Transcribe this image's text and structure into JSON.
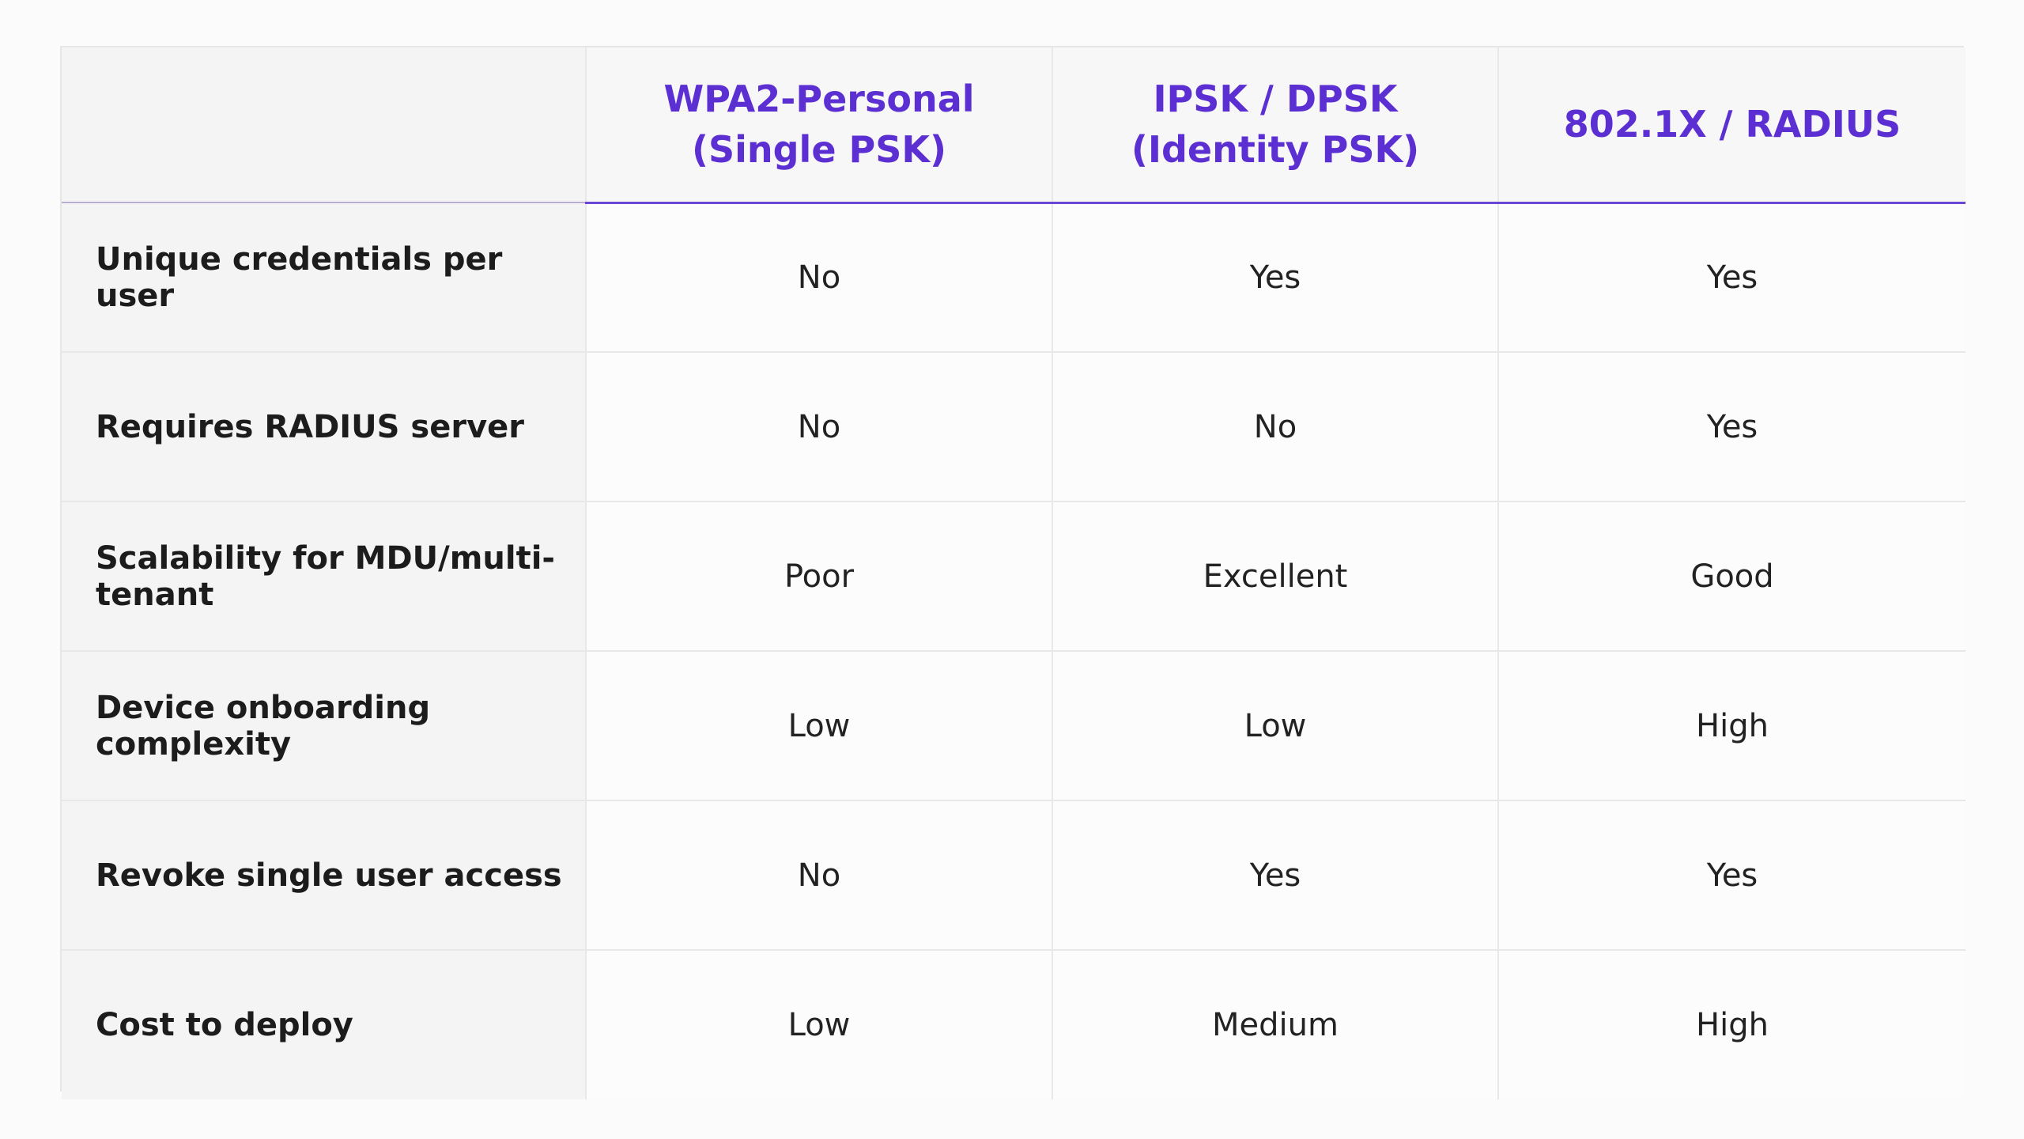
{
  "table": {
    "corner": "",
    "columns": [
      {
        "line1": "WPA2-Personal",
        "line2": "(Single PSK)"
      },
      {
        "line1": "IPSK / DPSK",
        "line2": "(Identity PSK)"
      },
      {
        "line1": "802.1X / RADIUS",
        "line2": ""
      }
    ],
    "rows": [
      {
        "label": "Unique credentials per user",
        "values": [
          "No",
          "Yes",
          "Yes"
        ]
      },
      {
        "label": "Requires RADIUS server",
        "values": [
          "No",
          "No",
          "Yes"
        ]
      },
      {
        "label": "Scalability for MDU/multi-tenant",
        "values": [
          "Poor",
          "Excellent",
          "Good"
        ]
      },
      {
        "label": "Device onboarding complexity",
        "values": [
          "Low",
          "Low",
          "High"
        ]
      },
      {
        "label": "Revoke single user access",
        "values": [
          "No",
          "Yes",
          "Yes"
        ]
      },
      {
        "label": "Cost to deploy",
        "values": [
          "Low",
          "Medium",
          "High"
        ]
      }
    ]
  },
  "colors": {
    "header_text": "#5b2fd1",
    "header_rule": "#6a45d6",
    "label_bg": "#f5f4f4"
  }
}
